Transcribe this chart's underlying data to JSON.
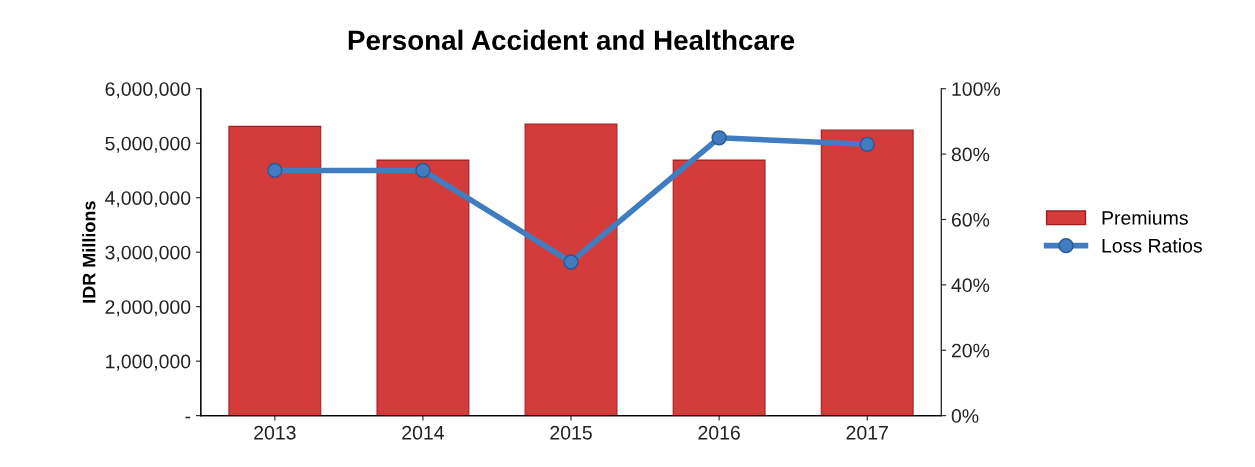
{
  "chart_data": {
    "type": "bar",
    "title": "Personal Accident and Healthcare",
    "ylabel": "IDR Millions",
    "categories": [
      "2013",
      "2014",
      "2015",
      "2016",
      "2017"
    ],
    "series": [
      {
        "name": "Premiums",
        "color": "#d43c3c",
        "values": [
          5310000,
          4690000,
          5350000,
          4690000,
          5240000
        ]
      },
      {
        "name": "Loss Ratios",
        "type": "line",
        "axis": "y2",
        "color": "#3f7dc0",
        "marker": "circle",
        "values": [
          75,
          75,
          47,
          85,
          83
        ]
      }
    ],
    "ylim": [
      0,
      6000000
    ],
    "yticks": [
      {
        "value": 0,
        "label": "-"
      },
      {
        "value": 1000000,
        "label": "1,000,000"
      },
      {
        "value": 2000000,
        "label": "2,000,000"
      },
      {
        "value": 3000000,
        "label": "3,000,000"
      },
      {
        "value": 4000000,
        "label": "4,000,000"
      },
      {
        "value": 5000000,
        "label": "5,000,000"
      },
      {
        "value": 6000000,
        "label": "6,000,000"
      }
    ],
    "y2lim": [
      0,
      100
    ],
    "y2ticks": [
      {
        "value": 0,
        "label": "0%"
      },
      {
        "value": 20,
        "label": "20%"
      },
      {
        "value": 40,
        "label": "40%"
      },
      {
        "value": 60,
        "label": "60%"
      },
      {
        "value": 80,
        "label": "80%"
      },
      {
        "value": 100,
        "label": "100%"
      }
    ],
    "legend": "right"
  }
}
